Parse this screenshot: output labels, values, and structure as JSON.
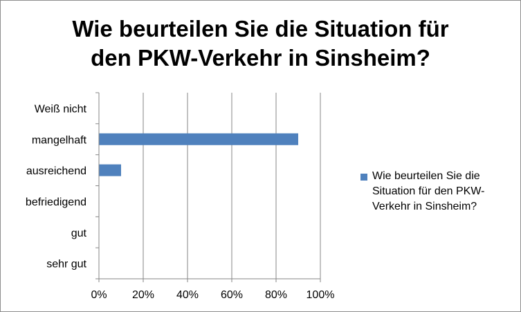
{
  "chart_data": {
    "type": "bar",
    "orientation": "horizontal",
    "title_lines": [
      "Wie beurteilen Sie die Situation für",
      "den PKW-Verkehr in Sinsheim?"
    ],
    "categories": [
      "Weiß nicht",
      "mangelhaft",
      "ausreichend",
      "befriedigend",
      "gut",
      "sehr gut"
    ],
    "series": [
      {
        "name": "Wie beurteilen Sie die Situation für den PKW-Verkehr in Sinsheim?",
        "color": "#4f81bd",
        "values": [
          0,
          90,
          10,
          0,
          0,
          0
        ]
      }
    ],
    "x_ticks": [
      "0%",
      "20%",
      "40%",
      "60%",
      "80%",
      "100%"
    ],
    "xlim": [
      0,
      100
    ],
    "grid": "vertical",
    "legend_position": "right"
  }
}
